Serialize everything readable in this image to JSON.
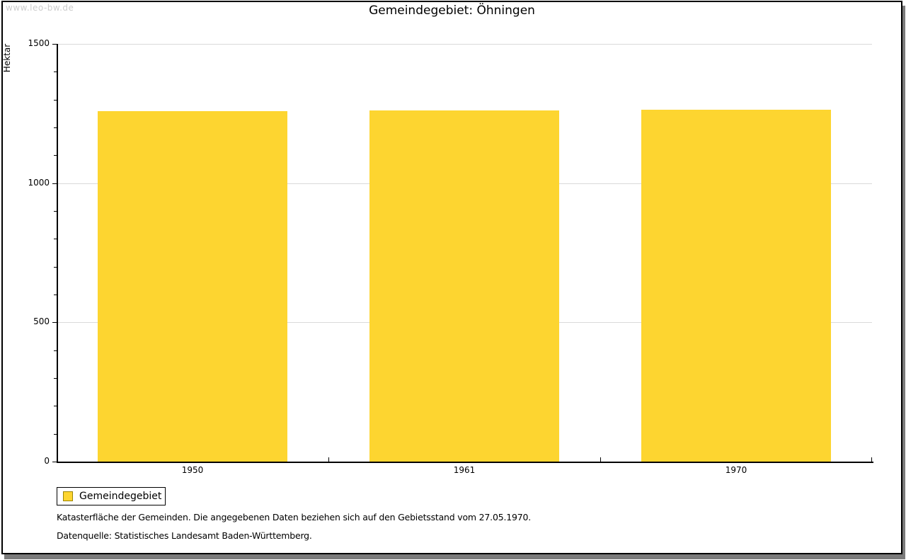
{
  "watermark": "www.leo-bw.de",
  "title": "Gemeindegebiet: Öhningen",
  "chart_data": {
    "type": "bar",
    "title": "Gemeindegebiet: Öhningen",
    "categories": [
      "1950",
      "1961",
      "1970"
    ],
    "series": [
      {
        "name": "Gemeindegebiet",
        "values": [
          1258,
          1260,
          1263
        ]
      }
    ],
    "xlabel": "",
    "ylabel": "Hektar",
    "ylim": [
      0,
      1500
    ],
    "y_major_step": 500,
    "y_minor_step": 100,
    "grid": "horizontal-major",
    "legend_position": "bottom-left",
    "bar_color": "#FDD530"
  },
  "legend": {
    "items": [
      {
        "label": "Gemeindegebiet",
        "color": "#FDD530",
        "swatch_border": "#9C8500"
      }
    ]
  },
  "footnotes": [
    "Katasterfläche der Gemeinden. Die angegebenen Daten beziehen sich auf den Gebietsstand vom 27.05.1970.",
    "Datenquelle: Statistisches Landesamt Baden-Württemberg."
  ],
  "colors": {
    "bar": "#FDD530",
    "swatch_border": "#9C8500",
    "gridline": "#dadada",
    "axis": "#000000",
    "frame_border": "#000000",
    "frame_shadow": "#7b7b7b",
    "watermark": "#cccccc"
  }
}
